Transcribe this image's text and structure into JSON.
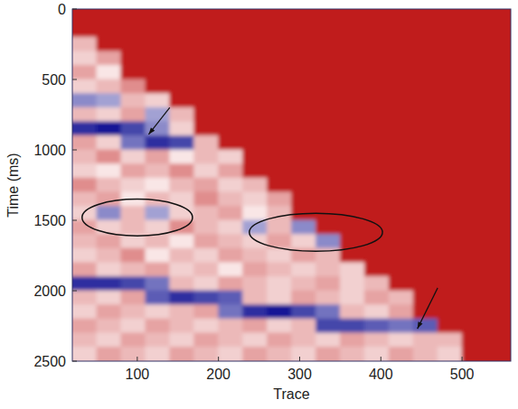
{
  "chart_data": {
    "type": "heatmap",
    "x_label": "Trace",
    "y_label": "Time (ms)",
    "xlim": [
      20,
      560
    ],
    "ylim": [
      0,
      2500
    ],
    "xticks": [
      100,
      200,
      300,
      400,
      500
    ],
    "yticks": [
      0,
      500,
      1000,
      1500,
      2000,
      2500
    ],
    "zlim": [
      -1,
      1
    ],
    "x": [
      35,
      65,
      95,
      125,
      155,
      185,
      215,
      245,
      275,
      305,
      335,
      365,
      395,
      425,
      455,
      485,
      515,
      545
    ],
    "y": [
      50,
      150,
      250,
      350,
      450,
      550,
      650,
      750,
      850,
      950,
      1050,
      1150,
      1250,
      1350,
      1450,
      1550,
      1650,
      1750,
      1850,
      1950,
      2050,
      2150,
      2250,
      2350,
      2450
    ],
    "cells": [
      [
        1,
        1,
        1,
        1,
        1,
        1,
        1,
        1,
        1,
        1,
        1,
        1,
        1,
        1,
        1,
        1,
        1,
        1
      ],
      [
        1,
        1,
        1,
        1,
        1,
        1,
        1,
        1,
        1,
        1,
        1,
        1,
        1,
        1,
        1,
        1,
        1,
        1
      ],
      [
        0.3,
        1,
        1,
        1,
        1,
        1,
        1,
        1,
        1,
        1,
        1,
        1,
        1,
        1,
        1,
        1,
        1,
        1
      ],
      [
        0.2,
        0.4,
        1,
        1,
        1,
        1,
        1,
        1,
        1,
        1,
        1,
        1,
        1,
        1,
        1,
        1,
        1,
        1
      ],
      [
        0.4,
        0.1,
        1,
        1,
        1,
        1,
        1,
        1,
        1,
        1,
        1,
        1,
        1,
        1,
        1,
        1,
        1,
        1
      ],
      [
        0.2,
        0.3,
        0.5,
        1,
        1,
        1,
        1,
        1,
        1,
        1,
        1,
        1,
        1,
        1,
        1,
        1,
        1,
        1
      ],
      [
        -0.5,
        -0.4,
        0.3,
        0.2,
        1,
        1,
        1,
        1,
        1,
        1,
        1,
        1,
        1,
        1,
        1,
        1,
        1,
        1
      ],
      [
        0.3,
        0.2,
        0.4,
        -0.4,
        0.3,
        1,
        1,
        1,
        1,
        1,
        1,
        1,
        1,
        1,
        1,
        1,
        1,
        1
      ],
      [
        -0.9,
        -1,
        -0.8,
        -0.5,
        0.2,
        1,
        1,
        1,
        1,
        1,
        1,
        1,
        1,
        1,
        1,
        1,
        1,
        1
      ],
      [
        0.4,
        0.2,
        -0.6,
        -0.9,
        -0.8,
        0.3,
        1,
        1,
        1,
        1,
        1,
        1,
        1,
        1,
        1,
        1,
        1,
        1
      ],
      [
        0.3,
        0.5,
        0.2,
        0.4,
        0.1,
        0.3,
        0.2,
        1,
        1,
        1,
        1,
        1,
        1,
        1,
        1,
        1,
        1,
        1
      ],
      [
        0.2,
        0.1,
        0.4,
        0.3,
        0.5,
        0.2,
        0.4,
        1,
        1,
        1,
        1,
        1,
        1,
        1,
        1,
        1,
        1,
        1
      ],
      [
        0.5,
        0.3,
        0.2,
        0.1,
        0.3,
        0.4,
        0.2,
        0.3,
        1,
        1,
        1,
        1,
        1,
        1,
        1,
        1,
        1,
        1
      ],
      [
        0.3,
        0.4,
        0.1,
        0.3,
        0.2,
        0.5,
        0.3,
        0.2,
        0.4,
        1,
        1,
        1,
        1,
        1,
        1,
        1,
        1,
        1
      ],
      [
        0.2,
        -0.5,
        0.3,
        -0.4,
        0.2,
        0.3,
        0.4,
        0.1,
        0.3,
        1,
        1,
        1,
        1,
        1,
        1,
        1,
        1,
        1
      ],
      [
        0.4,
        0.2,
        0.3,
        0.2,
        0.5,
        0.3,
        0.2,
        -0.4,
        0.3,
        -0.5,
        1,
        1,
        1,
        1,
        1,
        1,
        1,
        1
      ],
      [
        0.3,
        0.4,
        0.2,
        0.3,
        0.1,
        0.4,
        0.3,
        0.2,
        0.4,
        0.2,
        -0.5,
        1,
        1,
        1,
        1,
        1,
        1,
        1
      ],
      [
        0.2,
        0.3,
        0.5,
        0.1,
        0.3,
        0.2,
        0.4,
        0.3,
        0.2,
        0.4,
        0.3,
        1,
        1,
        1,
        1,
        1,
        1,
        1
      ],
      [
        0.4,
        0.2,
        0.3,
        0.4,
        0.2,
        0.3,
        0.1,
        0.4,
        0.3,
        0.2,
        0.3,
        0.2,
        1,
        1,
        1,
        1,
        1,
        1
      ],
      [
        -0.9,
        -0.9,
        -0.8,
        -0.6,
        0.3,
        0.2,
        0.4,
        0.3,
        0.2,
        0.3,
        0.4,
        0.2,
        0.3,
        1,
        1,
        1,
        1,
        1
      ],
      [
        0.3,
        0.2,
        0.4,
        -0.7,
        -0.9,
        -0.8,
        -0.7,
        0.3,
        0.2,
        0.4,
        0.3,
        0.2,
        0.4,
        0.3,
        1,
        1,
        1,
        1
      ],
      [
        0.2,
        0.4,
        0.3,
        0.2,
        0.3,
        0.4,
        -0.6,
        -0.9,
        -1,
        -0.8,
        -0.6,
        0.3,
        0.2,
        0.4,
        1,
        1,
        1,
        1
      ],
      [
        0.4,
        0.3,
        0.2,
        0.4,
        0.3,
        0.2,
        0.3,
        0.4,
        0.2,
        0.3,
        -0.8,
        -0.8,
        -0.7,
        -0.6,
        -0.7,
        1,
        1,
        1
      ],
      [
        0.3,
        0.2,
        0.4,
        0.3,
        0.2,
        0.4,
        0.3,
        0.2,
        0.4,
        0.3,
        0.2,
        0.4,
        0.3,
        0.2,
        0.3,
        0.3,
        1,
        1
      ],
      [
        0.2,
        0.4,
        0.3,
        0.2,
        0.4,
        0.3,
        0.2,
        0.4,
        0.3,
        0.2,
        0.4,
        0.3,
        0.2,
        0.4,
        0.3,
        0.2,
        1,
        1
      ]
    ]
  }
}
